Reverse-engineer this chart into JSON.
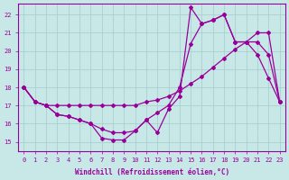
{
  "xlabel": "Windchill (Refroidissement éolien,°C)",
  "bg_color": "#c8e8e8",
  "grid_color": "#a8d0d0",
  "line_color": "#990099",
  "xlim": [
    -0.5,
    23.5
  ],
  "ylim": [
    14.5,
    22.6
  ],
  "xticks": [
    0,
    1,
    2,
    3,
    4,
    5,
    6,
    7,
    8,
    9,
    10,
    11,
    12,
    13,
    14,
    15,
    16,
    17,
    18,
    19,
    20,
    21,
    22,
    23
  ],
  "yticks": [
    15,
    16,
    17,
    18,
    19,
    20,
    21,
    22
  ],
  "line1_x": [
    0,
    1,
    2,
    3,
    4,
    5,
    6,
    7,
    8,
    9,
    10,
    11,
    12,
    13,
    14,
    15,
    16,
    17,
    18,
    19,
    20,
    21,
    22,
    23
  ],
  "line1_y": [
    18.0,
    17.2,
    17.0,
    17.0,
    17.0,
    17.0,
    17.0,
    17.0,
    17.0,
    17.0,
    17.0,
    17.2,
    17.3,
    17.5,
    17.8,
    18.2,
    18.6,
    19.1,
    19.6,
    20.1,
    20.5,
    21.0,
    21.0,
    17.2
  ],
  "line2_x": [
    0,
    1,
    2,
    3,
    4,
    5,
    6,
    7,
    8,
    9,
    10,
    11,
    12,
    13,
    14,
    15,
    16,
    17,
    18,
    19,
    20,
    21,
    22,
    23
  ],
  "line2_y": [
    18.0,
    17.2,
    17.0,
    16.5,
    16.4,
    16.2,
    16.0,
    15.7,
    15.5,
    15.5,
    15.6,
    16.2,
    16.6,
    17.0,
    18.0,
    20.4,
    21.5,
    21.7,
    22.0,
    20.5,
    20.5,
    20.5,
    19.8,
    17.2
  ],
  "line3_x": [
    0,
    1,
    2,
    3,
    4,
    5,
    6,
    7,
    8,
    9,
    10,
    11,
    12,
    13,
    14,
    15,
    16,
    17,
    18,
    19,
    20,
    21,
    22,
    23
  ],
  "line3_y": [
    18.0,
    17.2,
    17.0,
    16.5,
    16.4,
    16.2,
    16.0,
    15.2,
    15.1,
    15.1,
    15.6,
    16.2,
    15.5,
    16.8,
    17.5,
    22.4,
    21.5,
    21.7,
    22.0,
    20.5,
    20.5,
    19.8,
    18.5,
    17.2
  ]
}
